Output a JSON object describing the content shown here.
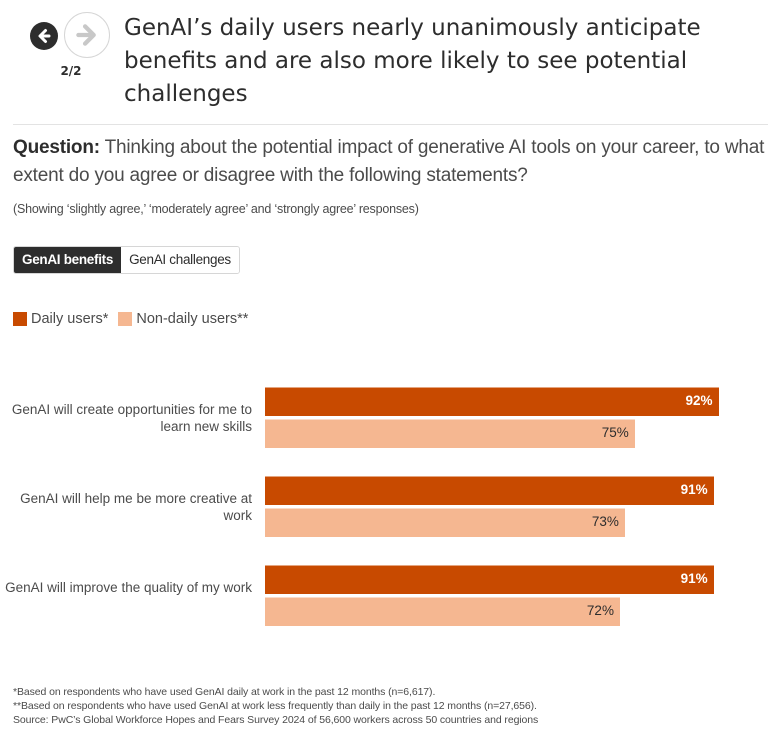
{
  "nav": {
    "prev_icon": "arrow-left-icon",
    "next_icon": "arrow-right-icon",
    "page_count": "2/2"
  },
  "title": "GenAI’s daily users nearly unanimously anticipate benefits and are also more likely to see potential challenges",
  "question": {
    "label": "Question:",
    "text": " Thinking about the potential impact of generative AI tools on your career, to what extent do you agree or disagree with the following statements?"
  },
  "note": "(Showing ‘slightly agree,’ ‘moderately agree’ and ‘strongly agree’ responses)",
  "tabs": [
    {
      "label": "GenAI benefits",
      "active": true
    },
    {
      "label": "GenAI challenges",
      "active": false
    }
  ],
  "colors": {
    "daily": "#c84a00",
    "non_daily": "#f5b791",
    "dark": "#2d2d2d"
  },
  "chart_data": {
    "type": "bar",
    "orientation": "horizontal",
    "categories": [
      "GenAI will create opportunities for me to learn new skills",
      "GenAI will help me be more creative at work",
      "GenAI will improve the quality of my work"
    ],
    "series": [
      {
        "name": "Daily users*",
        "values": [
          92,
          91,
          91
        ],
        "labels": [
          "92%",
          "91%",
          "91%"
        ]
      },
      {
        "name": "Non-daily users**",
        "values": [
          75,
          73,
          72
        ],
        "labels": [
          "75%",
          "73%",
          "72%"
        ]
      }
    ],
    "unit": "%",
    "xlim": [
      0,
      100
    ],
    "legend": "top-left",
    "grid": false
  },
  "footnotes": [
    "*Based on respondents who have used GenAI daily at work in the past 12 months (n=6,617).",
    "**Based on respondents who have used GenAI at work less frequently than daily in the past 12 months (n=27,656).",
    "Source: PwC’s Global Workforce Hopes and Fears Survey 2024 of 56,600 workers across 50 countries and regions"
  ]
}
